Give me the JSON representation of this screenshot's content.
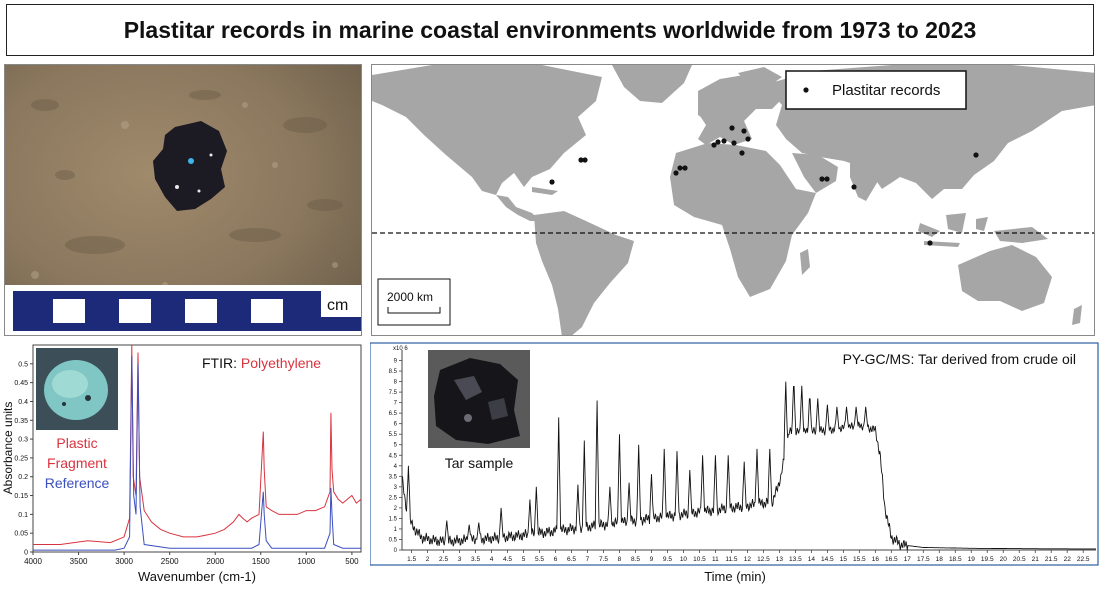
{
  "title": "Plastitar records in marine coastal environments worldwide from 1973 to 2023",
  "photo": {
    "scale_unit": "cm"
  },
  "map": {
    "legend_label": "Plastitar records",
    "scalebar_label": "2000 km"
  },
  "ftir": {
    "header_prefix": "FTIR: ",
    "header_material": "Polyethylene",
    "ylabel": "Absorbance units",
    "xlabel": "Wavenumber (cm-1)",
    "label_plastic_line1": "Plastic",
    "label_plastic_line2": "Fragment",
    "label_reference": "Reference",
    "colors": {
      "plastic": "#d9333f",
      "reference": "#3b4fbf"
    }
  },
  "gcms": {
    "header": "PY-GC/MS: Tar derived from crude oil",
    "xlabel": "Time (min)",
    "y_multiplier": "x10 6",
    "inset_label": "Tar sample"
  },
  "chart_data": [
    {
      "type": "line",
      "title": "FTIR: Polyethylene",
      "xlabel": "Wavenumber (cm-1)",
      "ylabel": "Absorbance units",
      "xlim": [
        4000,
        400
      ],
      "ylim": [
        0,
        0.55
      ],
      "x_ticks": [
        4000,
        3500,
        3000,
        2500,
        2000,
        1500,
        1000,
        500
      ],
      "y_ticks": [
        0,
        0.05,
        0.1,
        0.15,
        0.2,
        0.25,
        0.3,
        0.35,
        0.4,
        0.45,
        0.5
      ],
      "series": [
        {
          "name": "Plastic Fragment",
          "color": "#d9333f",
          "x": [
            4000,
            3700,
            3400,
            3150,
            3000,
            2940,
            2916,
            2900,
            2870,
            2848,
            2830,
            2780,
            2700,
            2600,
            2500,
            2350,
            2200,
            2100,
            2000,
            1900,
            1800,
            1740,
            1700,
            1650,
            1600,
            1520,
            1472,
            1462,
            1440,
            1380,
            1300,
            1200,
            1100,
            1000,
            900,
            800,
            740,
            730,
            718,
            700,
            650,
            600,
            550,
            500,
            450,
            400
          ],
          "y": [
            0.02,
            0.02,
            0.03,
            0.025,
            0.04,
            0.09,
            0.55,
            0.2,
            0.15,
            0.53,
            0.2,
            0.11,
            0.08,
            0.06,
            0.05,
            0.04,
            0.04,
            0.045,
            0.05,
            0.06,
            0.08,
            0.1,
            0.09,
            0.08,
            0.09,
            0.1,
            0.32,
            0.22,
            0.12,
            0.11,
            0.1,
            0.1,
            0.1,
            0.11,
            0.11,
            0.12,
            0.16,
            0.37,
            0.22,
            0.16,
            0.14,
            0.13,
            0.14,
            0.15,
            0.13,
            0.14
          ]
        },
        {
          "name": "Reference",
          "color": "#3b4fbf",
          "x": [
            4000,
            3500,
            3100,
            3000,
            2940,
            2916,
            2895,
            2870,
            2848,
            2825,
            2780,
            2500,
            2000,
            1600,
            1520,
            1472,
            1462,
            1440,
            1380,
            1000,
            800,
            740,
            730,
            718,
            700,
            600,
            400
          ],
          "y": [
            0.005,
            0.005,
            0.005,
            0.01,
            0.04,
            0.52,
            0.15,
            0.1,
            0.5,
            0.12,
            0.02,
            0.01,
            0.01,
            0.01,
            0.02,
            0.16,
            0.1,
            0.03,
            0.01,
            0.01,
            0.01,
            0.05,
            0.17,
            0.1,
            0.02,
            0.01,
            0.01
          ]
        }
      ]
    },
    {
      "type": "line",
      "title": "PY-GC/MS: Tar derived from crude oil",
      "xlabel": "Time (min)",
      "ylabel": "x10 6",
      "xlim": [
        1.2,
        22.9
      ],
      "ylim": [
        0,
        9.5
      ],
      "x_ticks": [
        1.5,
        2,
        2.5,
        3,
        3.5,
        4,
        4.5,
        5,
        5.5,
        6,
        6.5,
        7,
        7.5,
        8,
        8.5,
        9,
        9.5,
        10,
        10.5,
        11,
        11.5,
        12,
        12.5,
        13,
        13.5,
        14,
        14.5,
        15,
        15.5,
        16,
        16.5,
        17,
        17.5,
        18,
        18.5,
        19,
        19.5,
        20,
        20.5,
        21,
        21.5,
        22,
        22.5
      ],
      "y_ticks": [
        0,
        0.5,
        1,
        1.5,
        2,
        2.5,
        3,
        3.5,
        4,
        4.5,
        5,
        5.5,
        6,
        6.5,
        7,
        7.5,
        8,
        8.5,
        9
      ],
      "baseline": {
        "x": [
          1.2,
          1.3,
          1.5,
          1.8,
          2.2,
          2.6,
          3.0,
          4.0,
          5.0,
          6.0,
          7.0,
          8.0,
          9.0,
          10.0,
          11.0,
          12.0,
          12.8,
          13.05,
          13.3,
          14.0,
          15.0,
          15.6,
          16.0,
          16.15,
          16.3,
          16.5,
          16.8,
          17.5,
          19.0,
          21.0,
          22.9
        ],
        "y": [
          3.5,
          2.2,
          1.2,
          0.6,
          0.45,
          0.4,
          0.45,
          0.55,
          0.7,
          0.9,
          1.1,
          1.3,
          1.5,
          1.7,
          1.9,
          2.1,
          2.3,
          3.5,
          5.6,
          5.6,
          5.8,
          5.9,
          5.7,
          4.5,
          2.0,
          0.6,
          0.25,
          0.12,
          0.08,
          0.06,
          0.05
        ]
      },
      "peaks": {
        "x": [
          1.4,
          2.6,
          3.3,
          3.6,
          4.3,
          5.2,
          5.4,
          6.1,
          6.7,
          6.9,
          7.3,
          7.7,
          8.0,
          8.3,
          8.6,
          9.0,
          9.4,
          9.8,
          10.2,
          10.6,
          11.0,
          11.4,
          11.9,
          12.3,
          12.7,
          13.2,
          13.45,
          13.7,
          13.95,
          14.2,
          14.5,
          14.8,
          15.1,
          15.4,
          15.7
        ],
        "y": [
          4.0,
          1.4,
          1.2,
          1.3,
          2.0,
          2.4,
          3.0,
          6.3,
          3.1,
          5.2,
          7.1,
          3.0,
          5.5,
          3.2,
          5.0,
          3.6,
          4.8,
          4.7,
          3.8,
          4.5,
          4.5,
          4.5,
          4.2,
          4.8,
          4.8,
          8.0,
          8.2,
          7.8,
          7.5,
          7.2,
          6.9,
          6.8,
          6.8,
          6.8,
          6.8
        ]
      }
    }
  ]
}
